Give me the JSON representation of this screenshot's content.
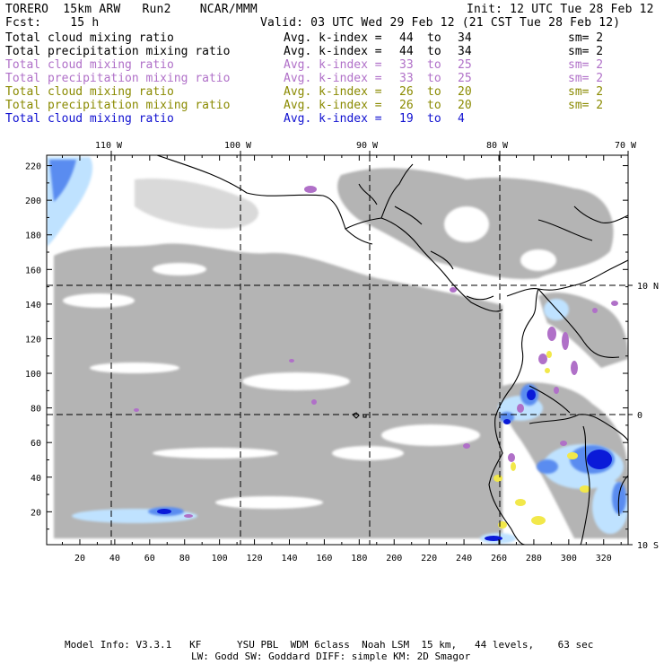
{
  "header": {
    "left1": "TORERO  15km ARW   Run2    NCAR/MMM",
    "left2": "Fcst:    15 h",
    "right1": "Init: 12 UTC Tue 28 Feb 12",
    "right2": "Valid: 03 UTC Wed 29 Feb 12 (21 CST Tue 28 Feb 12)"
  },
  "legend": [
    {
      "field": "Total cloud mixing ratio",
      "kidx": "Avg. k-index =",
      "k1": "44",
      "to": "to",
      "k2": "34",
      "sm": "sm= 2",
      "color": "#000000"
    },
    {
      "field": "Total precipitation mixing ratio",
      "kidx": "Avg. k-index =",
      "k1": "44",
      "to": "to",
      "k2": "34",
      "sm": "sm= 2",
      "color": "#000000"
    },
    {
      "field": "Total cloud mixing ratio",
      "kidx": "Avg. k-index =",
      "k1": "33",
      "to": "to",
      "k2": "25",
      "sm": "sm= 2",
      "color": "#b070c8"
    },
    {
      "field": "Total precipitation mixing ratio",
      "kidx": "Avg. k-index =",
      "k1": "33",
      "to": "to",
      "k2": "25",
      "sm": "sm= 2",
      "color": "#b070c8"
    },
    {
      "field": "Total cloud mixing ratio",
      "kidx": "Avg. k-index =",
      "k1": "26",
      "to": "to",
      "k2": "20",
      "sm": "sm= 2",
      "color": "#8a8a00"
    },
    {
      "field": "Total precipitation mixing ratio",
      "kidx": "Avg. k-index =",
      "k1": "26",
      "to": "to",
      "k2": "20",
      "sm": "sm= 2",
      "color": "#8a8a00"
    },
    {
      "field": "Total cloud mixing ratio",
      "kidx": "Avg. k-index =",
      "k1": "19",
      "to": "to",
      "k2": "4",
      "sm": "",
      "color": "#1010d0"
    }
  ],
  "map": {
    "lon_labels": [
      "110 W",
      "100 W",
      "90 W",
      "80 W",
      "70 W"
    ],
    "lat_labels": [
      "10 N",
      "0",
      "10 S"
    ],
    "x_ticks": [
      "20",
      "40",
      "60",
      "80",
      "100",
      "120",
      "140",
      "160",
      "180",
      "200",
      "220",
      "240",
      "260",
      "280",
      "300",
      "320"
    ],
    "y_ticks": [
      "20",
      "40",
      "60",
      "80",
      "100",
      "120",
      "140",
      "160",
      "180",
      "200",
      "220"
    ],
    "x_range": [
      1,
      334
    ],
    "y_range": [
      1,
      226
    ],
    "colors": {
      "cloud_gray": "#b4b4b4",
      "purple": "#b070c8",
      "yellow": "#f2e84a",
      "light_blue": "#bfe2ff",
      "mid_blue": "#5a8cf0",
      "dark_blue": "#0a1ad8",
      "coast": "#000000"
    }
  },
  "footer": {
    "line1": "Model Info: V3.3.1   KF      YSU PBL  WDM 6class  Noah LSM  15 km,   44 levels,    63 sec",
    "line2": "LW: Godd SW: Goddard DIFF: simple KM: 2D Smagor"
  }
}
